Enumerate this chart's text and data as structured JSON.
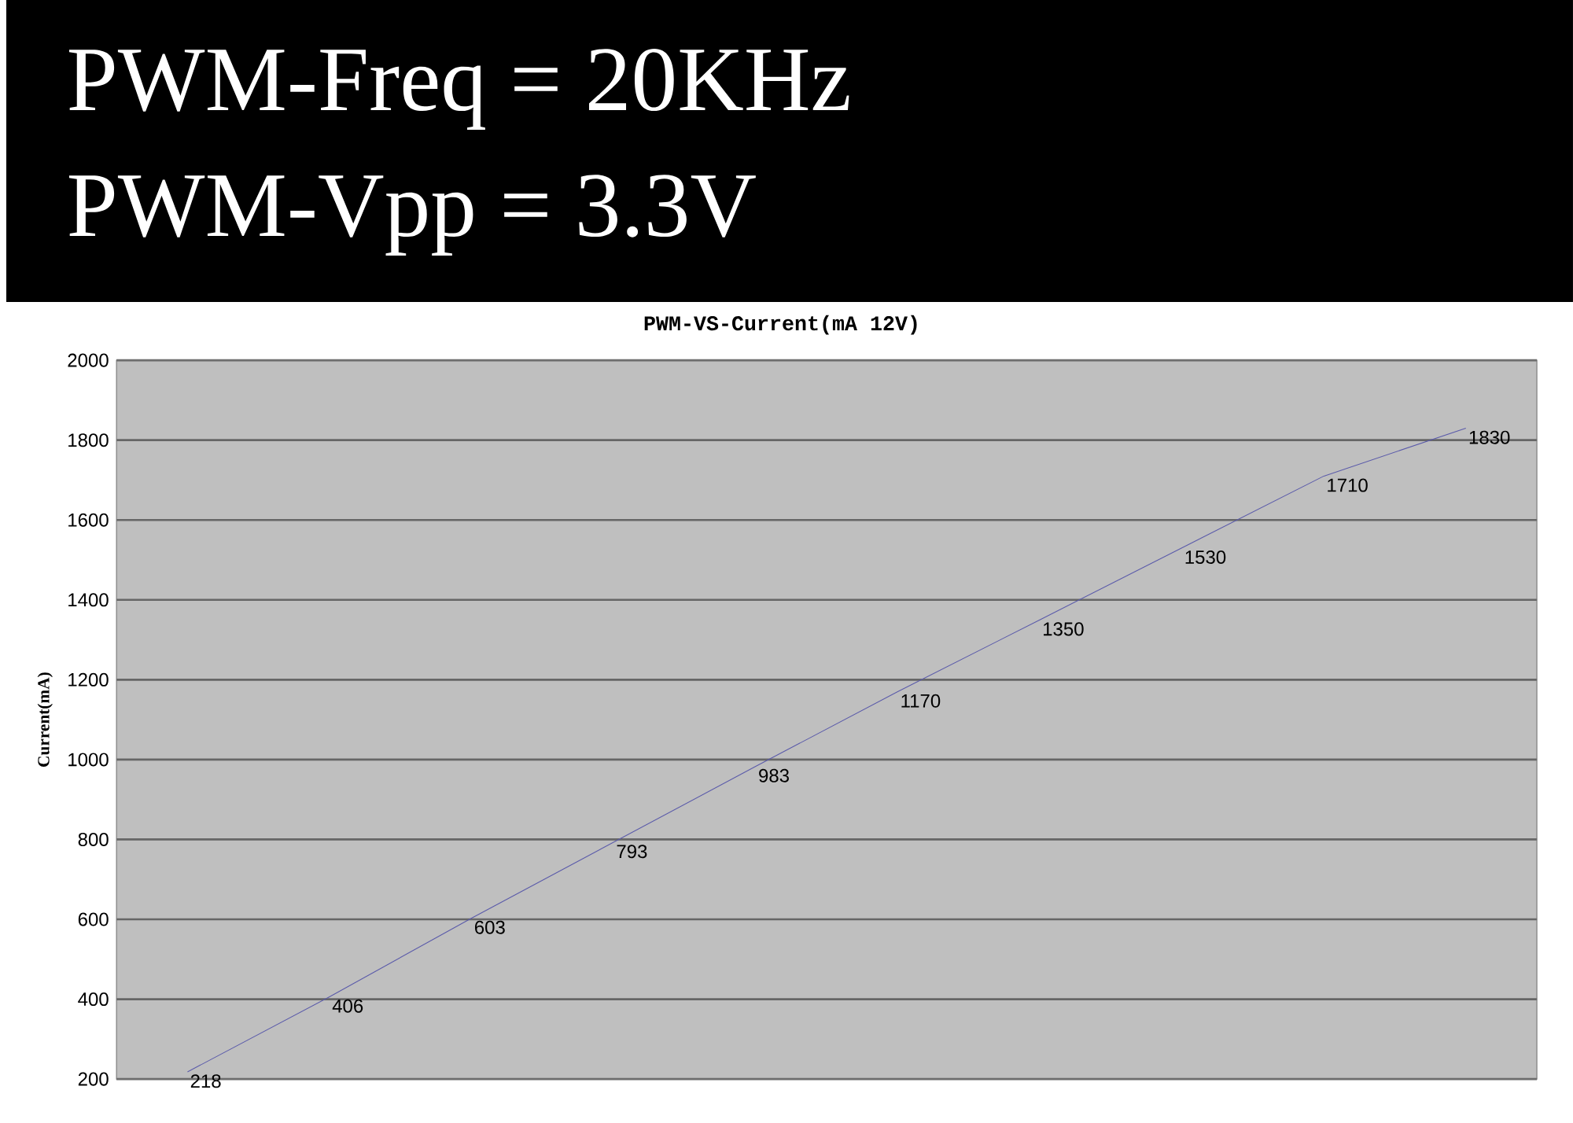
{
  "chart_data": {
    "type": "line",
    "title": "PWM-VS-Current(mA 12V)",
    "ylabel": "Current(mA)",
    "annotations": [
      "PWM-Freq = 20KHz",
      "PWM-Vpp = 3.3V"
    ],
    "categories": [
      null,
      null,
      null,
      null,
      null,
      null,
      null,
      null,
      null,
      null
    ],
    "values": [
      218,
      406,
      603,
      793,
      983,
      1170,
      1350,
      1530,
      1710,
      1830
    ],
    "color": "#5a5aaa",
    "ylim": [
      200,
      2000
    ],
    "yticks": [
      200,
      400,
      600,
      800,
      1000,
      1200,
      1400,
      1600,
      1800,
      2000
    ],
    "grid": "y",
    "data_labels": true,
    "marker": "none",
    "line_style": "solid"
  }
}
